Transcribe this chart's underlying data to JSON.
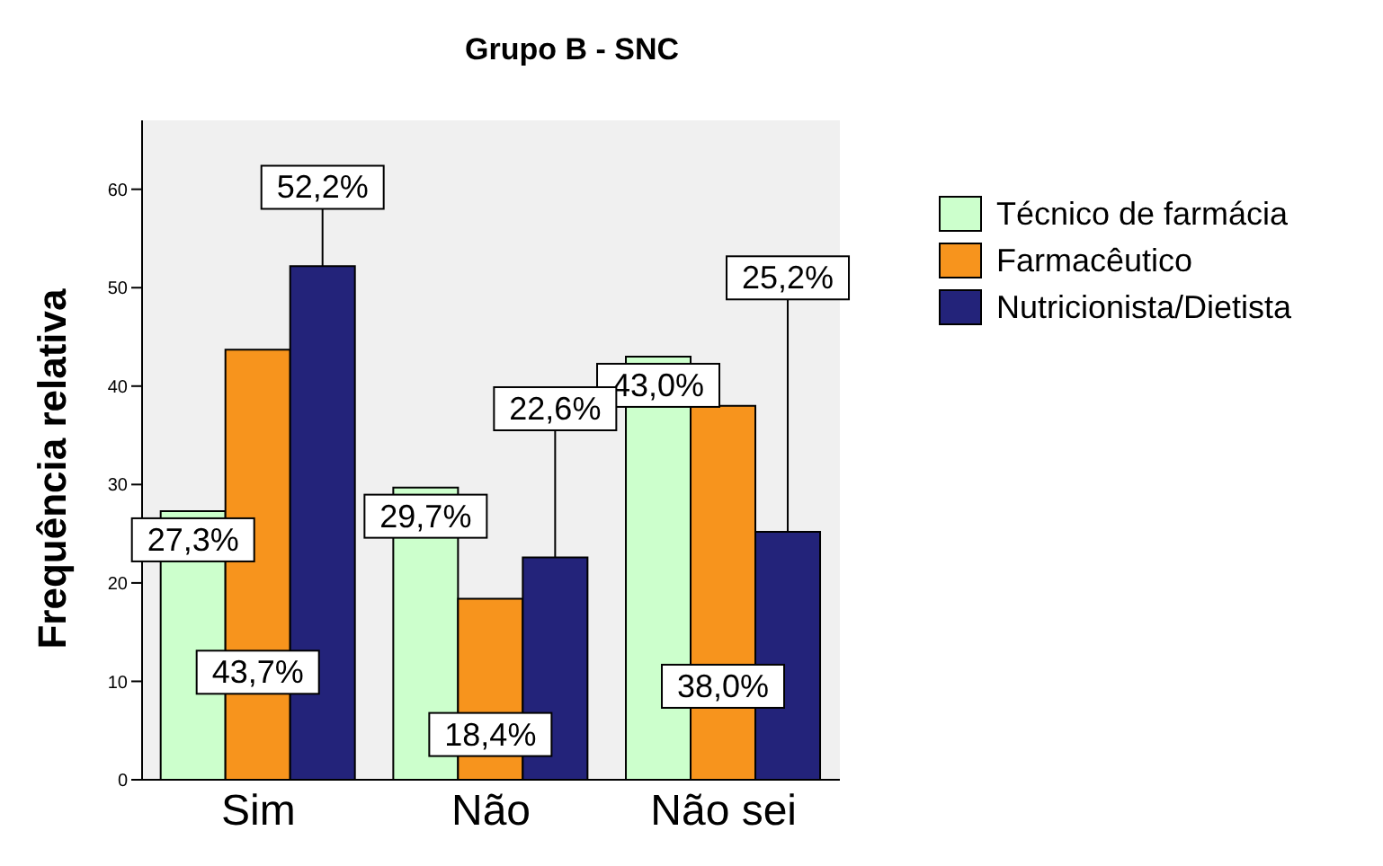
{
  "chart_data": {
    "type": "bar",
    "title": "Grupo B - SNC",
    "ylabel": "Frequência relativa",
    "categories": [
      "Sim",
      "Não",
      "Não sei"
    ],
    "series": [
      {
        "name": "Técnico de farmácia",
        "color": "#ccffcc",
        "values": [
          27.3,
          29.7,
          43.0
        ],
        "value_labels": [
          "27,3%",
          "29,7%",
          "43,0%"
        ]
      },
      {
        "name": "Farmacêutico",
        "color": "#f7941d",
        "values": [
          43.7,
          18.4,
          38.0
        ],
        "value_labels": [
          "43,7%",
          "18,4%",
          "38,0%"
        ]
      },
      {
        "name": "Nutricionista/Dietista",
        "color": "#23237a",
        "values": [
          52.2,
          22.6,
          25.2
        ],
        "value_labels": [
          "52,2%",
          "22,6%",
          "25,2%"
        ]
      }
    ],
    "ylim": [
      0,
      67
    ],
    "yticks": [
      0,
      10,
      20,
      30,
      40,
      50,
      60
    ],
    "grid": false,
    "legend": "top right"
  }
}
